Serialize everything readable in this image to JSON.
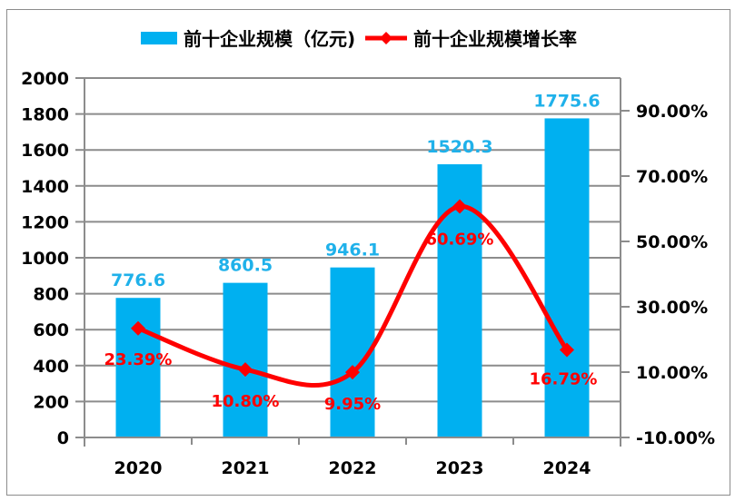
{
  "chart_data": {
    "type": "bar+line",
    "categories": [
      "2020",
      "2021",
      "2022",
      "2023",
      "2024"
    ],
    "series": [
      {
        "name": "前十企业规模（亿元)",
        "type": "bar",
        "axis": "left",
        "values": [
          776.6,
          860.5,
          946.1,
          1520.3,
          1775.6
        ],
        "labels": [
          "776.6",
          "860.5",
          "946.1",
          "1520.3",
          "1775.6"
        ],
        "color": "#00b0f0"
      },
      {
        "name": "前十企业规模增长率",
        "type": "line",
        "axis": "right",
        "values": [
          23.39,
          10.8,
          9.95,
          60.69,
          16.79
        ],
        "labels": [
          "23.39%",
          "10.80%",
          "9.95%",
          "60.69%",
          "16.79%"
        ],
        "color": "#ff0000",
        "marker": "diamond",
        "smooth": true
      }
    ],
    "y_left": {
      "ylim": [
        0,
        2000
      ],
      "ticks": [
        "0",
        "200",
        "400",
        "600",
        "800",
        "1000",
        "1200",
        "1400",
        "1600",
        "1800",
        "2000"
      ],
      "tick_values": [
        0,
        200,
        400,
        600,
        800,
        1000,
        1200,
        1400,
        1600,
        1800,
        2000
      ]
    },
    "y_right": {
      "ylim": [
        -10,
        100
      ],
      "ticks": [
        "-10.00%",
        "10.00%",
        "30.00%",
        "50.00%",
        "70.00%",
        "90.00%"
      ],
      "tick_values": [
        -10,
        10,
        30,
        50,
        70,
        90
      ]
    },
    "grid": true,
    "legend": "top",
    "title": ""
  }
}
